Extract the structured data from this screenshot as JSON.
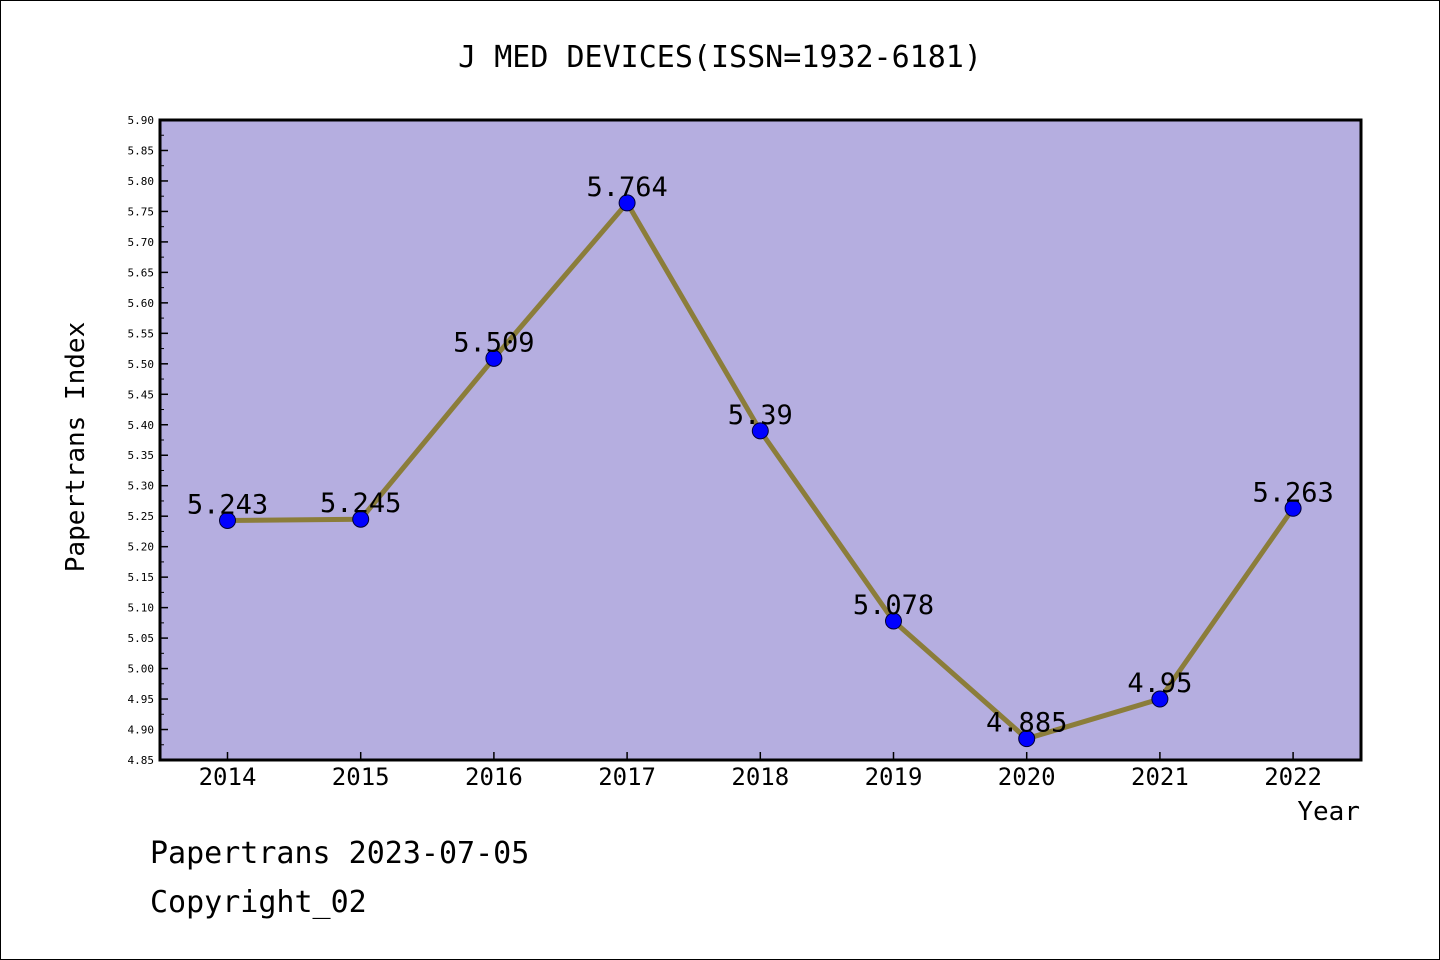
{
  "chart_data": {
    "type": "line",
    "title": "J MED DEVICES(ISSN=1932-6181)",
    "xlabel": "Year",
    "ylabel": "Papertrans Index",
    "categories": [
      "2014",
      "2015",
      "2016",
      "2017",
      "2018",
      "2019",
      "2020",
      "2021",
      "2022"
    ],
    "series": [
      {
        "values": [
          5.243,
          5.245,
          5.509,
          5.764,
          5.39,
          5.078,
          4.885,
          4.95,
          5.263
        ],
        "labels": [
          "5.243",
          "5.245",
          "5.509",
          "5.764",
          "5.39",
          "5.078",
          "4.885",
          "4.95",
          "5.263"
        ]
      }
    ],
    "ylim": [
      4.85,
      5.9
    ],
    "ytick_step": 0.05,
    "grid": false,
    "legend": "none",
    "colors": {
      "plot_background": "#b5aee0",
      "line": "#8b7d3a",
      "marker": "#0000ff"
    }
  },
  "footer": {
    "line1": "Papertrans 2023-07-05",
    "line2": "Copyright_02"
  }
}
